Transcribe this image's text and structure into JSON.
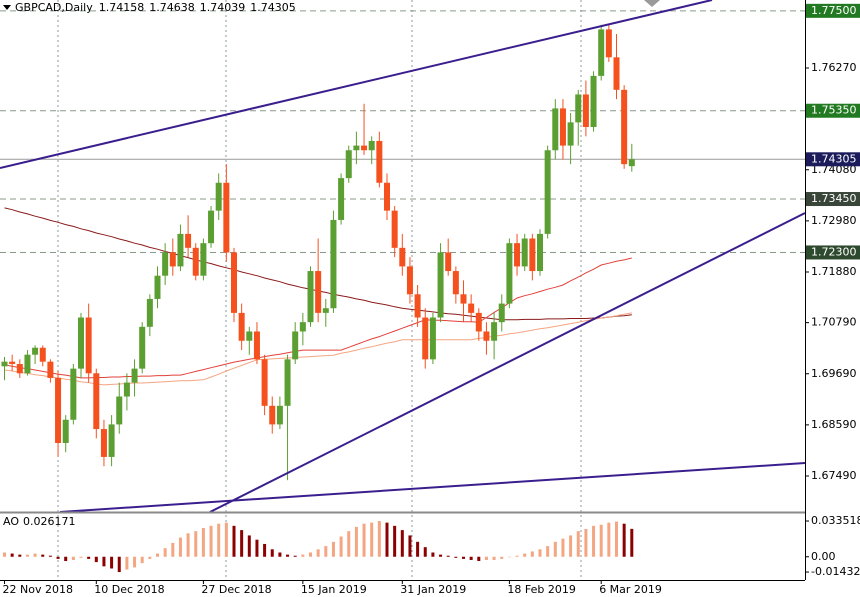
{
  "chart_data": {
    "type": "candlestick",
    "title": "GBPCAD,Daily",
    "categories": [
      "22 Nov 2018",
      null,
      null,
      null,
      null,
      null,
      null,
      null,
      null,
      null,
      null,
      null,
      "10 Dec 2018",
      null,
      null,
      null,
      null,
      null,
      null,
      null,
      null,
      null,
      null,
      null,
      null,
      null,
      "27 Dec 2018",
      null,
      null,
      null,
      null,
      null,
      null,
      null,
      null,
      null,
      null,
      null,
      null,
      "15 Jan 2019",
      null,
      null,
      null,
      null,
      null,
      null,
      null,
      null,
      null,
      null,
      null,
      null,
      "31 Jan 2019",
      null,
      null,
      null,
      null,
      null,
      null,
      null,
      null,
      null,
      null,
      null,
      null,
      null,
      "18 Feb 2019",
      null,
      null,
      null,
      null,
      null,
      null,
      null,
      null,
      null,
      null,
      null,
      "6 Mar 2019",
      null,
      null,
      null,
      null
    ],
    "open": [
      1.6985,
      1.6995,
      1.699,
      1.697,
      1.701,
      1.7025,
      1.6995,
      1.696,
      1.682,
      1.687,
      1.698,
      1.709,
      1.697,
      1.685,
      1.679,
      1.686,
      1.692,
      1.695,
      1.698,
      1.707,
      1.713,
      1.718,
      1.723,
      1.72,
      1.727,
      1.724,
      1.718,
      1.725,
      1.732,
      1.738,
      1.723,
      1.71,
      1.704,
      1.706,
      1.7,
      1.69,
      1.686,
      1.69,
      1.7,
      1.706,
      1.708,
      1.719,
      1.71,
      1.711,
      1.73,
      1.739,
      1.745,
      1.746,
      1.745,
      1.747,
      1.738,
      1.732,
      1.724,
      1.72,
      1.714,
      1.709,
      1.7,
      1.709,
      1.723,
      1.719,
      1.714,
      1.712,
      1.71,
      1.706,
      1.704,
      1.708,
      1.712,
      1.725,
      1.72,
      1.726,
      1.719,
      1.727,
      1.745,
      1.754,
      1.746,
      1.751,
      1.757,
      1.75,
      1.761,
      1.771,
      1.765,
      1.758,
      1.74158
    ],
    "high": [
      1.7005,
      1.701,
      1.7,
      1.702,
      1.703,
      1.703,
      1.7,
      1.6975,
      1.688,
      1.699,
      1.71,
      1.712,
      1.698,
      1.687,
      1.688,
      1.695,
      1.697,
      1.7,
      1.708,
      1.714,
      1.72,
      1.725,
      1.726,
      1.729,
      1.731,
      1.725,
      1.726,
      1.733,
      1.74,
      1.742,
      1.724,
      1.712,
      1.707,
      1.708,
      1.701,
      1.692,
      1.692,
      1.701,
      1.708,
      1.71,
      1.72,
      1.726,
      1.713,
      1.732,
      1.74,
      1.746,
      1.749,
      1.755,
      1.748,
      1.749,
      1.74,
      1.733,
      1.727,
      1.722,
      1.716,
      1.711,
      1.71,
      1.725,
      1.726,
      1.72,
      1.717,
      1.714,
      1.711,
      1.708,
      1.71,
      1.714,
      1.726,
      1.727,
      1.727,
      1.727,
      1.728,
      1.746,
      1.756,
      1.756,
      1.753,
      1.758,
      1.76,
      1.762,
      1.772,
      1.772,
      1.77,
      1.759,
      1.74638
    ],
    "low": [
      1.6955,
      1.6975,
      1.696,
      1.6965,
      1.699,
      1.6985,
      1.695,
      1.679,
      1.68,
      1.686,
      1.696,
      1.695,
      1.683,
      1.677,
      1.677,
      1.684,
      1.689,
      1.692,
      1.697,
      1.705,
      1.711,
      1.716,
      1.718,
      1.719,
      1.722,
      1.717,
      1.717,
      1.724,
      1.73,
      1.721,
      1.708,
      1.702,
      1.701,
      1.699,
      1.688,
      1.684,
      1.685,
      1.674,
      1.699,
      1.703,
      1.707,
      1.708,
      1.707,
      1.71,
      1.729,
      1.738,
      1.742,
      1.744,
      1.742,
      1.737,
      1.73,
      1.722,
      1.718,
      1.712,
      1.707,
      1.698,
      1.699,
      1.708,
      1.718,
      1.712,
      1.708,
      1.708,
      1.704,
      1.701,
      1.7,
      1.706,
      1.711,
      1.718,
      1.719,
      1.717,
      1.718,
      1.726,
      1.743,
      1.743,
      1.742,
      1.746,
      1.748,
      1.749,
      1.76,
      1.764,
      1.756,
      1.741,
      1.74039
    ],
    "close": [
      1.6995,
      1.699,
      1.697,
      1.701,
      1.7025,
      1.6995,
      1.696,
      1.682,
      1.687,
      1.698,
      1.709,
      1.697,
      1.685,
      1.679,
      1.686,
      1.692,
      1.695,
      1.698,
      1.707,
      1.713,
      1.718,
      1.723,
      1.72,
      1.727,
      1.724,
      1.718,
      1.725,
      1.732,
      1.738,
      1.723,
      1.71,
      1.704,
      1.706,
      1.7,
      1.69,
      1.686,
      1.69,
      1.7,
      1.706,
      1.708,
      1.719,
      1.71,
      1.711,
      1.73,
      1.739,
      1.745,
      1.746,
      1.745,
      1.747,
      1.738,
      1.732,
      1.724,
      1.72,
      1.714,
      1.709,
      1.7,
      1.709,
      1.723,
      1.719,
      1.714,
      1.712,
      1.71,
      1.706,
      1.704,
      1.708,
      1.712,
      1.725,
      1.72,
      1.726,
      1.719,
      1.727,
      1.745,
      1.754,
      1.746,
      1.751,
      1.757,
      1.75,
      1.761,
      1.771,
      1.765,
      1.758,
      1.742,
      1.74305
    ],
    "up_color": "#5b9e32",
    "down_color": "#f4511e",
    "ylim": [
      1.66715,
      1.77733
    ],
    "yticks": [
      {
        "value": 1.7627,
        "label": "1.76270"
      },
      {
        "value": 1.7408,
        "label": "1.74080"
      },
      {
        "value": 1.7298,
        "label": "1.72980"
      },
      {
        "value": 1.7188,
        "label": "1.71880"
      },
      {
        "value": 1.7079,
        "label": "1.70790"
      },
      {
        "value": 1.6969,
        "label": "1.69690"
      },
      {
        "value": 1.6859,
        "label": "1.68590"
      },
      {
        "value": 1.6749,
        "label": "1.67490"
      }
    ],
    "levels": [
      {
        "value": 1.775,
        "label": "1.77500",
        "color": "#217a21"
      },
      {
        "value": 1.7535,
        "label": "1.75350",
        "color": "#217a21"
      },
      {
        "value": 1.7345,
        "label": "1.73450",
        "color": "#3a453a"
      },
      {
        "value": 1.723,
        "label": "1.72300",
        "color": "#2e4a2e"
      }
    ],
    "price_color": "#1c1c5c",
    "lines": [
      {
        "color": "#8b1a1a",
        "values": [
          1.7326,
          1.7322,
          1.7317,
          1.7313,
          1.7308,
          1.7304,
          1.7299,
          1.7295,
          1.729,
          1.7286,
          1.7281,
          1.7277,
          1.7272,
          1.7268,
          1.7264,
          1.7259,
          1.7255,
          1.725,
          1.7246,
          1.7241,
          1.7237,
          1.7232,
          1.7228,
          1.7223,
          1.7219,
          1.7214,
          1.721,
          1.7206,
          1.7201,
          1.7197,
          1.7193,
          1.7188,
          1.7184,
          1.718,
          1.7175,
          1.7171,
          1.7167,
          1.7162,
          1.7158,
          1.7154,
          1.7151,
          1.7147,
          1.7144,
          1.714,
          1.7137,
          1.7134,
          1.713,
          1.7127,
          1.7123,
          1.712,
          1.7117,
          1.7113,
          1.711,
          1.7108,
          1.7106,
          1.7104,
          1.7102,
          1.71,
          1.7098,
          1.7097,
          1.7095,
          1.7093,
          1.7091,
          1.7089,
          1.7087,
          1.7085,
          1.7085,
          1.7085,
          1.7086,
          1.7086,
          1.7086,
          1.7087,
          1.7087,
          1.7087,
          1.7088,
          1.7088,
          1.7088,
          1.7089,
          1.7089,
          1.7091,
          1.7093,
          1.7094,
          1.7096
        ]
      },
      {
        "color": "#e2413a",
        "values": [
          1.6988,
          1.6985,
          1.6982,
          1.698,
          1.6977,
          1.6974,
          1.6971,
          1.6968,
          1.6966,
          1.6963,
          1.696,
          1.696,
          1.6961,
          1.6961,
          1.6962,
          1.6962,
          1.6963,
          1.6963,
          1.6964,
          1.6964,
          1.6965,
          1.6965,
          1.6966,
          1.6966,
          1.697,
          1.6974,
          1.6978,
          1.6982,
          1.6986,
          1.699,
          1.6994,
          1.6997,
          1.7,
          1.7003,
          1.7006,
          1.7009,
          1.7011,
          1.7014,
          1.7017,
          1.702,
          1.702,
          1.702,
          1.702,
          1.702,
          1.702,
          1.7026,
          1.7032,
          1.7038,
          1.7044,
          1.7049,
          1.7055,
          1.7061,
          1.7067,
          1.7073,
          1.7079,
          1.7085,
          1.7084,
          1.7084,
          1.7083,
          1.7082,
          1.7081,
          1.7081,
          1.708,
          1.709,
          1.7101,
          1.7111,
          1.7122,
          1.7132,
          1.7137,
          1.7141,
          1.7146,
          1.7151,
          1.7155,
          1.716,
          1.7169,
          1.7177,
          1.7186,
          1.7194,
          1.7203,
          1.7207,
          1.7211,
          1.7214,
          1.7218
        ]
      },
      {
        "color": "#f4a582",
        "values": [
          1.6977,
          1.6975,
          1.6972,
          1.697,
          1.6967,
          1.6965,
          1.6962,
          1.696,
          1.6957,
          1.6955,
          1.6952,
          1.695,
          1.6947,
          1.6945,
          1.6946,
          1.6947,
          1.6948,
          1.6949,
          1.6949,
          1.695,
          1.6951,
          1.6952,
          1.6953,
          1.6954,
          1.6954,
          1.6955,
          1.6956,
          1.6962,
          1.6968,
          1.6975,
          1.6981,
          1.6987,
          1.6993,
          1.6999,
          1.7,
          1.7001,
          1.7002,
          1.7003,
          1.7004,
          1.7005,
          1.7006,
          1.7007,
          1.7008,
          1.7009,
          1.7013,
          1.7016,
          1.702,
          1.7024,
          1.7027,
          1.7031,
          1.7035,
          1.7038,
          1.7042,
          1.7042,
          1.7042,
          1.7042,
          1.7042,
          1.7042,
          1.7042,
          1.7042,
          1.7042,
          1.7042,
          1.7045,
          1.7047,
          1.705,
          1.7052,
          1.7055,
          1.7057,
          1.706,
          1.7063,
          1.7066,
          1.7068,
          1.7071,
          1.7074,
          1.7077,
          1.708,
          1.7083,
          1.7086,
          1.7089,
          1.7091,
          1.7094,
          1.7097,
          1.71
        ]
      }
    ],
    "indicator": {
      "type": "bar",
      "title": "AO",
      "up_color": "#f4a582",
      "down_color": "#8b0000",
      "ylim": [
        -0.0218,
        0.0401
      ],
      "yticks": [
        0.033518,
        {
          "value": 0,
          "label": "0.00"
        },
        -0.014326
      ],
      "values": [
        0.004,
        0.003,
        0.002,
        0.002,
        0.003,
        0.002,
        0.001,
        -0.002,
        -0.004,
        -0.003,
        -0.001,
        -0.002,
        -0.005,
        -0.009,
        -0.011,
        -0.014326,
        -0.012,
        -0.01,
        -0.006,
        -0.002,
        0.003,
        0.008,
        0.013,
        0.018,
        0.022,
        0.024,
        0.027,
        0.029,
        0.031,
        0.032,
        0.029,
        0.025,
        0.02,
        0.016,
        0.012,
        0.007,
        0.004,
        0.002,
        0.001,
        0.002,
        0.004,
        0.007,
        0.01,
        0.014,
        0.019,
        0.024,
        0.028,
        0.031,
        0.032,
        0.033518,
        0.032,
        0.029,
        0.025,
        0.02,
        0.014,
        0.009,
        0.004,
        0.002,
        0.001,
        -0.001,
        -0.002,
        -0.003,
        -0.004,
        -0.003,
        -0.003,
        -0.002,
        0,
        0.001,
        0.003,
        0.005,
        0.007,
        0.01,
        0.014,
        0.017,
        0.02,
        0.024,
        0.026,
        0.029,
        0.03,
        0.032,
        0.033,
        0.031,
        0.026171
      ]
    }
  }
}
